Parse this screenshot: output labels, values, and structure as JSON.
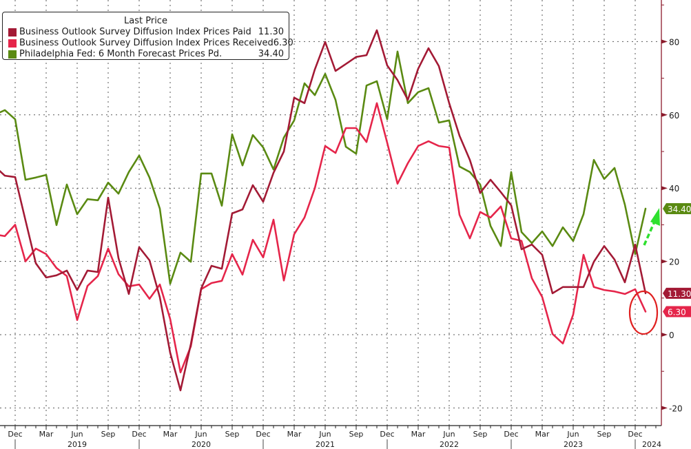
{
  "chart_data": {
    "type": "line",
    "title": "",
    "xlabel": "",
    "ylabel": "",
    "ylim": [
      -25,
      90
    ],
    "y_ticks": [
      80,
      60,
      40,
      20,
      0,
      -20
    ],
    "y_tick_labels": [
      "80",
      "60",
      "40",
      "20",
      "0",
      "-20"
    ],
    "x_start": "2018-10",
    "x_month_labels": [
      {
        "month": "2018-12",
        "label": "Dec"
      },
      {
        "month": "2019-03",
        "label": "Mar"
      },
      {
        "month": "2019-06",
        "label": "Jun"
      },
      {
        "month": "2019-09",
        "label": "Sep"
      },
      {
        "month": "2019-12",
        "label": "Dec"
      },
      {
        "month": "2020-03",
        "label": "Mar"
      },
      {
        "month": "2020-06",
        "label": "Jun"
      },
      {
        "month": "2020-09",
        "label": "Sep"
      },
      {
        "month": "2020-12",
        "label": "Dec"
      },
      {
        "month": "2021-03",
        "label": "Mar"
      },
      {
        "month": "2021-06",
        "label": "Jun"
      },
      {
        "month": "2021-09",
        "label": "Sep"
      },
      {
        "month": "2021-12",
        "label": "Dec"
      },
      {
        "month": "2022-03",
        "label": "Mar"
      },
      {
        "month": "2022-06",
        "label": "Jun"
      },
      {
        "month": "2022-09",
        "label": "Sep"
      },
      {
        "month": "2022-12",
        "label": "Dec"
      },
      {
        "month": "2023-03",
        "label": "Mar"
      },
      {
        "month": "2023-06",
        "label": "Jun"
      },
      {
        "month": "2023-09",
        "label": "Sep"
      },
      {
        "month": "2023-12",
        "label": "Dec"
      }
    ],
    "x_year_labels": [
      {
        "month": "2019-06",
        "label": "2019"
      },
      {
        "month": "2020-06",
        "label": "2020"
      },
      {
        "month": "2021-06",
        "label": "2021"
      },
      {
        "month": "2022-06",
        "label": "2022"
      },
      {
        "month": "2023-06",
        "label": "2023"
      },
      {
        "month": "2024-01",
        "label": "2024"
      }
    ],
    "legend_title": "Last Price",
    "legend_position": "top-left",
    "grid": true,
    "series": [
      {
        "name": "Business Outlook Survey Diffusion Index Prices Paid",
        "last": "11.30",
        "color": "#a31a35",
        "values": [
          46,
          43.4,
          43,
          31.2,
          19.5,
          15.6,
          16.2,
          17.5,
          12.2,
          17.5,
          17.1,
          37.4,
          20.9,
          11.1,
          23.9,
          20.3,
          10.2,
          -4.9,
          -15.2,
          -2.6,
          12.6,
          18.8,
          18,
          33.1,
          34.2,
          40.8,
          36.3,
          44.2,
          50,
          64.7,
          63.2,
          72.4,
          79.9,
          72,
          73.9,
          75.8,
          76.3,
          83.1,
          73.5,
          69.5,
          64.1,
          72.6,
          78.2,
          73.3,
          63.2,
          54.3,
          47.7,
          38.7,
          42.3,
          38.9,
          35.3,
          23.3,
          24.6,
          21.8,
          11.3,
          13,
          13,
          13,
          19.9,
          24.2,
          20.5,
          14.3,
          24.6,
          11.3
        ]
      },
      {
        "name": "Business Outlook Survey Diffusion Index Prices Received",
        "last": "6.30",
        "color": "#e5254a",
        "values": [
          27.4,
          26.9,
          30,
          20,
          23.5,
          22,
          18.2,
          16,
          4,
          13.3,
          16,
          23.5,
          16.5,
          13.2,
          13.7,
          9.8,
          13.7,
          4.3,
          -10.3,
          -3.2,
          12.4,
          14.1,
          14.7,
          22,
          16.4,
          25.9,
          21.1,
          31.4,
          14.8,
          27.4,
          32,
          40,
          51.5,
          49.6,
          56.4,
          56.4,
          52.6,
          63.2,
          52.4,
          41.2,
          46.8,
          51.5,
          52.8,
          51.5,
          51.1,
          32.7,
          26.3,
          33.5,
          32,
          35,
          26.3,
          25.6,
          15.4,
          10.3,
          0.2,
          -2.4,
          5.5,
          21.8,
          13,
          12.2,
          11.8,
          11.1,
          12.4,
          6.3
        ]
      },
      {
        "name": "Philadelphia Fed: 6 Month Forecast Prices Pd.",
        "last": "34.40",
        "color": "#5a8a12",
        "values": [
          60,
          61.3,
          58.8,
          42.3,
          42.9,
          43.6,
          29.9,
          41,
          32.9,
          37,
          36.7,
          41.5,
          38.5,
          44.4,
          48.9,
          42.9,
          34.4,
          13.9,
          22.4,
          19.9,
          44,
          44,
          35.2,
          54.7,
          46.2,
          54.5,
          51.1,
          45.1,
          53.8,
          58.5,
          68.6,
          65.4,
          71.2,
          64.1,
          51.3,
          49.4,
          68,
          69.2,
          58.8,
          77.3,
          63.2,
          66.2,
          67.3,
          57.9,
          58.5,
          45.9,
          44.4,
          41,
          29.7,
          24.2,
          44.4,
          28,
          25,
          28.2,
          24.2,
          29.3,
          25.6,
          32.9,
          47.7,
          42.5,
          45.5,
          35.5,
          22,
          34.4
        ]
      }
    ],
    "annotations": [
      {
        "type": "ellipse",
        "color": "#e02020",
        "around": "Jan 2024 Prices Paid / Prices Received"
      },
      {
        "type": "dashed-arrow",
        "color": "#22e022",
        "direction": "up",
        "near": "Jan 2024 Forecast Prices Pd."
      }
    ],
    "axis_color": "#8b1a2b"
  }
}
